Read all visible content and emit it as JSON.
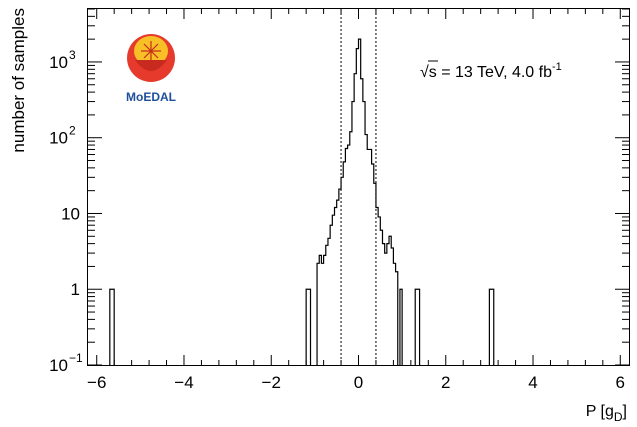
{
  "chart_data": {
    "type": "histogram",
    "ylabel": "number of samples",
    "xlabel_main": "P [g",
    "xlabel_sub": "D",
    "xlabel_end": "]",
    "annotation": {
      "sqrt_symbol": "√",
      "overline_char": "s",
      "rest": " = 13 TeV, 4.0 fb",
      "superscript": "-1"
    },
    "logo_text": "MoEDAL",
    "xlim": [
      -6.2,
      6.2
    ],
    "ylog": true,
    "ylim": [
      0.1,
      5000
    ],
    "xticks": [
      {
        "value": -6,
        "label": "−6"
      },
      {
        "value": -4,
        "label": "−4"
      },
      {
        "value": -2,
        "label": "−2"
      },
      {
        "value": 0,
        "label": "0"
      },
      {
        "value": 2,
        "label": "2"
      },
      {
        "value": 4,
        "label": "4"
      },
      {
        "value": 6,
        "label": "6"
      }
    ],
    "yticks": [
      {
        "value": 0.1,
        "base": "10",
        "exp": "−1"
      },
      {
        "value": 1,
        "base": "1",
        "exp": ""
      },
      {
        "value": 10,
        "base": "10",
        "exp": ""
      },
      {
        "value": 100,
        "base": "10",
        "exp": "2"
      },
      {
        "value": 1000,
        "base": "10",
        "exp": "3"
      }
    ],
    "vertical_lines": [
      -0.4,
      0.4
    ],
    "bins": [
      {
        "x0": -5.7,
        "x1": -5.6,
        "y": 1
      },
      {
        "x0": -1.2,
        "x1": -1.1,
        "y": 1
      },
      {
        "x0": -0.95,
        "x1": -0.9,
        "y": 2.2
      },
      {
        "x0": -0.9,
        "x1": -0.85,
        "y": 2.8
      },
      {
        "x0": -0.85,
        "x1": -0.8,
        "y": 2.2
      },
      {
        "x0": -0.8,
        "x1": -0.75,
        "y": 2.8
      },
      {
        "x0": -0.75,
        "x1": -0.7,
        "y": 3.8
      },
      {
        "x0": -0.7,
        "x1": -0.65,
        "y": 4.7
      },
      {
        "x0": -0.65,
        "x1": -0.6,
        "y": 7
      },
      {
        "x0": -0.6,
        "x1": -0.55,
        "y": 9.5
      },
      {
        "x0": -0.55,
        "x1": -0.5,
        "y": 12
      },
      {
        "x0": -0.5,
        "x1": -0.45,
        "y": 15
      },
      {
        "x0": -0.45,
        "x1": -0.4,
        "y": 21
      },
      {
        "x0": -0.4,
        "x1": -0.35,
        "y": 30
      },
      {
        "x0": -0.35,
        "x1": -0.3,
        "y": 48
      },
      {
        "x0": -0.3,
        "x1": -0.25,
        "y": 72
      },
      {
        "x0": -0.25,
        "x1": -0.2,
        "y": 80
      },
      {
        "x0": -0.2,
        "x1": -0.15,
        "y": 120
      },
      {
        "x0": -0.15,
        "x1": -0.1,
        "y": 300
      },
      {
        "x0": -0.1,
        "x1": -0.05,
        "y": 700
      },
      {
        "x0": -0.05,
        "x1": 0.0,
        "y": 1500
      },
      {
        "x0": 0.0,
        "x1": 0.05,
        "y": 2000
      },
      {
        "x0": 0.05,
        "x1": 0.1,
        "y": 600
      },
      {
        "x0": 0.1,
        "x1": 0.15,
        "y": 300
      },
      {
        "x0": 0.15,
        "x1": 0.2,
        "y": 110
      },
      {
        "x0": 0.2,
        "x1": 0.25,
        "y": 70
      },
      {
        "x0": 0.25,
        "x1": 0.3,
        "y": 70
      },
      {
        "x0": 0.3,
        "x1": 0.35,
        "y": 45
      },
      {
        "x0": 0.35,
        "x1": 0.4,
        "y": 25
      },
      {
        "x0": 0.4,
        "x1": 0.45,
        "y": 12
      },
      {
        "x0": 0.45,
        "x1": 0.5,
        "y": 9
      },
      {
        "x0": 0.5,
        "x1": 0.55,
        "y": 6
      },
      {
        "x0": 0.55,
        "x1": 0.6,
        "y": 4
      },
      {
        "x0": 0.6,
        "x1": 0.65,
        "y": 3
      },
      {
        "x0": 0.65,
        "x1": 0.7,
        "y": 4
      },
      {
        "x0": 0.7,
        "x1": 0.75,
        "y": 5
      },
      {
        "x0": 0.75,
        "x1": 0.8,
        "y": 3.5
      },
      {
        "x0": 0.8,
        "x1": 0.85,
        "y": 2.2
      },
      {
        "x0": 0.85,
        "x1": 0.9,
        "y": 1.7
      },
      {
        "x0": 0.95,
        "x1": 1.0,
        "y": 1
      },
      {
        "x0": 1.3,
        "x1": 1.4,
        "y": 1
      },
      {
        "x0": 3.0,
        "x1": 3.1,
        "y": 1
      }
    ]
  }
}
